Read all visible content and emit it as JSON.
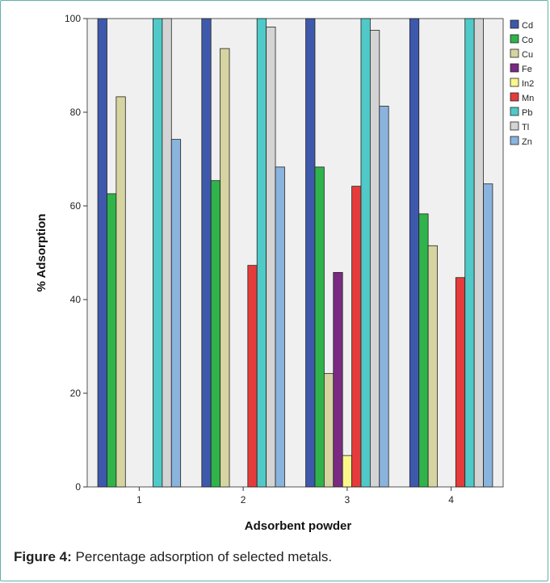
{
  "caption": {
    "label": "Figure 4:",
    "text": "Percentage adsorption of selected metals."
  },
  "chart_data": {
    "type": "bar",
    "xlabel": "Adsorbent powder",
    "ylabel": "% Adsorption",
    "ylim": [
      0,
      100
    ],
    "yticks": [
      0,
      20,
      40,
      60,
      80,
      100
    ],
    "categories": [
      "1",
      "2",
      "3",
      "4"
    ],
    "legend_position": "right",
    "grid": false,
    "plot_background": "#f0f0f0",
    "series": [
      {
        "name": "Cd",
        "color": "#3e58ac",
        "values": [
          100,
          100,
          100,
          100
        ]
      },
      {
        "name": "Co",
        "color": "#2fb34a",
        "values": [
          62.6,
          65.4,
          68.3,
          58.3
        ]
      },
      {
        "name": "Cu",
        "color": "#d6d4a0",
        "values": [
          83.3,
          93.6,
          24.2,
          51.5
        ]
      },
      {
        "name": "Fe",
        "color": "#7a2a83",
        "values": [
          0,
          0,
          45.8,
          0
        ]
      },
      {
        "name": "In2",
        "color": "#fbf78a",
        "values": [
          0,
          0,
          6.7,
          0
        ]
      },
      {
        "name": "Mn",
        "color": "#e63b3b",
        "values": [
          0,
          47.3,
          64.2,
          44.7
        ]
      },
      {
        "name": "Pb",
        "color": "#4fcac8",
        "values": [
          100,
          100,
          100,
          100
        ]
      },
      {
        "name": "Tl",
        "color": "#d4d4d4",
        "values": [
          100,
          98.2,
          97.5,
          100
        ]
      },
      {
        "name": "Zn",
        "color": "#8ab4de",
        "values": [
          74.2,
          68.3,
          81.3,
          64.7
        ]
      }
    ]
  }
}
